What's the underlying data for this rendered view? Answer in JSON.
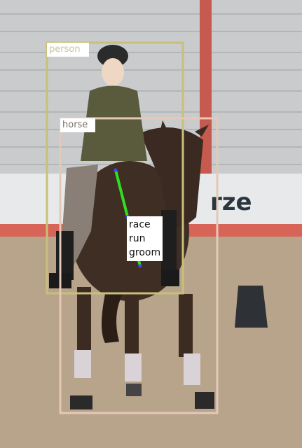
{
  "detections": [
    {
      "label": "person",
      "color": "#c8c07a"
    },
    {
      "label": "horse",
      "color": "#e6c8b8"
    }
  ],
  "relation": {
    "color": "#33dd22",
    "lines": [
      "race",
      "run",
      "groom"
    ]
  }
}
